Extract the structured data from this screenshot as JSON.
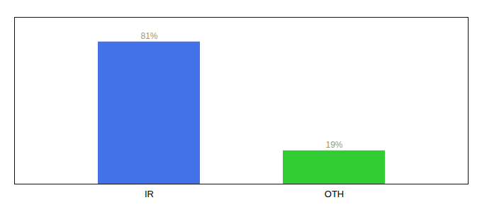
{
  "chart_data": {
    "type": "bar",
    "categories": [
      "IR",
      "OTH"
    ],
    "values": [
      81,
      19
    ],
    "value_labels": [
      "81%",
      "19%"
    ],
    "colors": [
      "#4472e8",
      "#33cc33"
    ],
    "ylim": [
      0,
      95
    ],
    "data_labels": true,
    "tick_labels": "x",
    "grid": false
  }
}
